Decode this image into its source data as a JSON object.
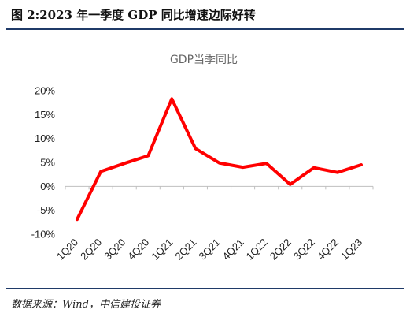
{
  "figure": {
    "title": "图 2:2023 年一季度 GDP 同比增速边际好转",
    "source": "数据来源：Wind，中信建投证券"
  },
  "chart_data": {
    "type": "line",
    "title": "GDP当季同比",
    "categories": [
      "1Q20",
      "2Q20",
      "3Q20",
      "4Q20",
      "1Q21",
      "2Q21",
      "3Q21",
      "4Q21",
      "1Q22",
      "2Q22",
      "3Q22",
      "4Q22",
      "1Q23"
    ],
    "series": [
      {
        "values": [
          -6.9,
          3.1,
          4.8,
          6.4,
          18.3,
          7.9,
          4.9,
          4.0,
          4.8,
          0.4,
          3.9,
          2.9,
          4.5
        ],
        "color": "#ff0000"
      }
    ],
    "yticks": [
      "20%",
      "15%",
      "10%",
      "5%",
      "0%",
      "-5%",
      "-10%"
    ],
    "ylim": [
      -10,
      20
    ],
    "grid": false,
    "legend": "none"
  }
}
